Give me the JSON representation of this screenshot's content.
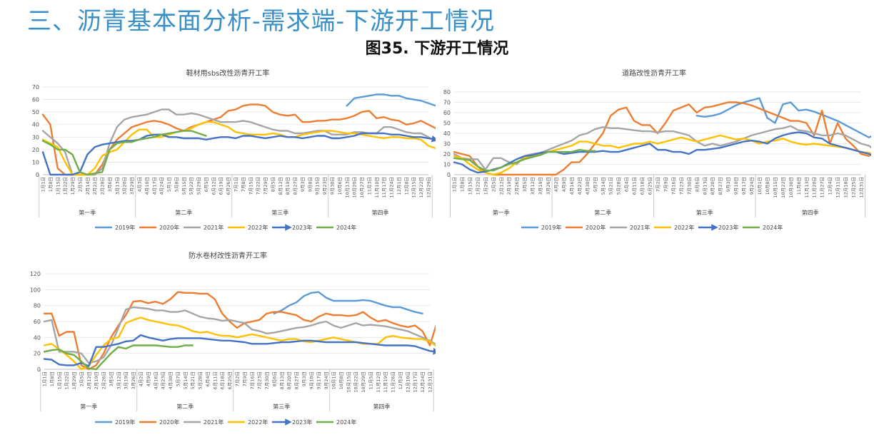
{
  "page": {
    "heading": "三、沥青基本面分析-需求端-下游开工情况",
    "figure_title": "图35. 下游开工情况"
  },
  "chart_data": [
    {
      "type": "line",
      "title": "鞋材用sbs改性沥青开工率",
      "y_ticks": [
        0,
        10,
        20,
        30,
        40,
        50,
        60,
        70
      ],
      "ylim": [
        0,
        70
      ],
      "x_labels": [
        "1月1日",
        "1月8日",
        "1月15日",
        "1月22日",
        "1月29日",
        "2月5日",
        "2月14日",
        "2月21日",
        "2月28日",
        "3月6日",
        "3月13日",
        "3月20日",
        "3月29日",
        "4月3日",
        "4月10日",
        "4月17日",
        "4月24日",
        "5月1日",
        "5月8日",
        "5月15日",
        "5月22日",
        "5月29日",
        "6月5日",
        "6月12日",
        "6月19日",
        "6月26日",
        "7月1日",
        "7月8日",
        "7月15日",
        "7月22日",
        "7月29日",
        "8月5日",
        "8月12日",
        "8月19日",
        "8月27日",
        "9月3日",
        "9月8日",
        "9月15日",
        "9月23日",
        "9月30日",
        "10月6日",
        "10月13日",
        "10月20日",
        "10月27日",
        "11月3日",
        "11月10日",
        "11月17日",
        "11月24日",
        "12月1日",
        "12月8日",
        "12月15日",
        "12月22日",
        "12月29日"
      ],
      "quarters": [
        "第一季",
        "第二季",
        "第三季",
        "第四季"
      ],
      "quarter_bounds": [
        0,
        13,
        26,
        39,
        53
      ],
      "series": [
        {
          "name": "2019年",
          "color": "#5b9bd5",
          "start": 41,
          "values": [
            55,
            61,
            62,
            63,
            64,
            64,
            63,
            63,
            61,
            60,
            59,
            57,
            55,
            52
          ]
        },
        {
          "name": "2020年",
          "color": "#ed7d31",
          "start": 0,
          "values": [
            48,
            40,
            5,
            0,
            0,
            0,
            0,
            0,
            8,
            20,
            28,
            33,
            38,
            40,
            42,
            43,
            42,
            40,
            37,
            35,
            38,
            40,
            42,
            44,
            46,
            51,
            52,
            55,
            56,
            56,
            55,
            50,
            48,
            47,
            48,
            42,
            42,
            43,
            43,
            44,
            44,
            45,
            47,
            50,
            51,
            45,
            46,
            44,
            43,
            40,
            41,
            43,
            40,
            37
          ]
        },
        {
          "name": "2021年",
          "color": "#a5a5a5",
          "start": 0,
          "values": [
            35,
            30,
            25,
            18,
            0,
            0,
            0,
            0,
            5,
            25,
            38,
            44,
            46,
            47,
            48,
            50,
            52,
            52,
            48,
            48,
            49,
            48,
            46,
            44,
            42,
            42,
            42,
            43,
            42,
            40,
            38,
            36,
            35,
            35,
            33,
            33,
            34,
            35,
            35,
            32,
            32,
            32,
            34,
            34,
            33,
            33,
            38,
            38,
            36,
            34,
            33,
            33,
            30,
            27
          ]
        },
        {
          "name": "2022年",
          "color": "#ffc000",
          "start": 0,
          "values": [
            28,
            25,
            22,
            10,
            0,
            0,
            0,
            5,
            15,
            18,
            20,
            26,
            32,
            36,
            36,
            30,
            30,
            32,
            34,
            35,
            37,
            40,
            42,
            42,
            40,
            38,
            34,
            33,
            32,
            32,
            32,
            33,
            32,
            30,
            30,
            32,
            33,
            34,
            35,
            35,
            34,
            33,
            33,
            32,
            31,
            30,
            29,
            30,
            30,
            29,
            29,
            28,
            23,
            21
          ]
        },
        {
          "name": "2023年",
          "color": "#4472c4",
          "start": 0,
          "values": [
            18,
            0,
            0,
            0,
            0,
            2,
            16,
            22,
            24,
            25,
            26,
            27,
            27,
            28,
            31,
            32,
            32,
            30,
            30,
            29,
            29,
            29,
            28,
            29,
            30,
            30,
            29,
            31,
            31,
            30,
            29,
            30,
            31,
            30,
            30,
            29,
            30,
            31,
            31,
            29,
            29,
            30,
            31,
            33,
            33,
            33,
            33,
            32,
            32,
            31,
            30,
            30,
            29,
            28
          ]
        },
        {
          "name": "2024年",
          "color": "#70ad47",
          "start": 0,
          "values": [
            27,
            24,
            20,
            20,
            16,
            2,
            0,
            1,
            2,
            20,
            25,
            26,
            26,
            28,
            29,
            30,
            32,
            33,
            34,
            35,
            35,
            33,
            31
          ]
        }
      ],
      "arrow_series": "2023年",
      "legend": [
        "2019年",
        "2020年",
        "2021年",
        "2022年",
        "2023年",
        "2024年"
      ]
    },
    {
      "type": "line",
      "title": "道路改性沥青开工率",
      "y_ticks": [
        0,
        10,
        20,
        30,
        40,
        50,
        60,
        70,
        80
      ],
      "ylim": [
        0,
        80
      ],
      "x_labels": [
        "1月1日",
        "1月8日",
        "1月15日",
        "1月22日",
        "1月29日",
        "2月5日",
        "2月12日",
        "2月19日",
        "2月26日",
        "3月5日",
        "3月12日",
        "3月19日",
        "3月26日",
        "4月2日",
        "4月9日",
        "4月16日",
        "4月23日",
        "4月30日",
        "5月7日",
        "5月14日",
        "5月21日",
        "5月28日",
        "6月4日",
        "6月11日",
        "6月18日",
        "6月25日",
        "7月2日",
        "7月9日",
        "7月16日",
        "7月23日",
        "7月30日",
        "8月6日",
        "8月13日",
        "8月20日",
        "8月27日",
        "9月3日",
        "9月10日",
        "9月17日",
        "9月24日",
        "10月1日",
        "10月8日",
        "10月15日",
        "10月22日",
        "10月30日",
        "11月6日",
        "11月13日",
        "11月20日",
        "11月27日",
        "12月4日",
        "12月11日",
        "12月18日",
        "12月25日",
        "12月31日"
      ],
      "quarters": [
        "第一季",
        "第二季",
        "第三季",
        "第四季"
      ],
      "quarter_bounds": [
        0,
        13,
        26,
        39,
        53
      ],
      "series": [
        {
          "name": "2019年",
          "color": "#5b9bd5",
          "start": 31,
          "values": [
            57,
            56,
            57,
            59,
            63,
            67,
            70,
            72,
            74,
            55,
            50,
            68,
            70,
            62,
            63,
            61,
            58,
            55,
            52,
            48,
            44,
            40,
            36,
            40,
            31
          ]
        },
        {
          "name": "2020年",
          "color": "#ed7d31",
          "start": 0,
          "values": [
            22,
            20,
            18,
            8,
            2,
            0,
            0,
            0,
            0,
            0,
            0,
            0,
            0,
            0,
            5,
            12,
            12,
            20,
            30,
            40,
            57,
            63,
            65,
            52,
            48,
            48,
            40,
            50,
            62,
            65,
            68,
            60,
            65,
            66,
            68,
            70,
            70,
            69,
            67,
            64,
            61,
            58,
            55,
            52,
            52,
            50,
            38,
            62,
            30,
            50,
            35,
            28,
            20,
            18
          ]
        },
        {
          "name": "2021年",
          "color": "#a5a5a5",
          "start": 0,
          "values": [
            20,
            16,
            15,
            15,
            5,
            16,
            16,
            12,
            10,
            18,
            20,
            21,
            24,
            27,
            30,
            33,
            38,
            40,
            44,
            46,
            45,
            45,
            44,
            43,
            42,
            42,
            41,
            42,
            42,
            40,
            38,
            32,
            28,
            30,
            28,
            30,
            32,
            35,
            38,
            40,
            42,
            44,
            45,
            47,
            43,
            42,
            40,
            38,
            38,
            40,
            38,
            34,
            30,
            28,
            22
          ]
        },
        {
          "name": "2022年",
          "color": "#ffc000",
          "start": 0,
          "values": [
            18,
            16,
            10,
            5,
            2,
            0,
            2,
            6,
            12,
            16,
            18,
            20,
            22,
            24,
            26,
            28,
            32,
            32,
            30,
            28,
            28,
            26,
            28,
            30,
            30,
            32,
            30,
            32,
            34,
            36,
            34,
            32,
            34,
            36,
            38,
            36,
            34,
            35,
            33,
            30,
            32,
            33,
            35,
            32,
            30,
            29,
            30,
            29,
            28,
            27,
            26,
            24,
            22,
            21,
            20
          ]
        },
        {
          "name": "2023年",
          "color": "#4472c4",
          "start": 0,
          "values": [
            12,
            10,
            5,
            2,
            3,
            5,
            7,
            11,
            15,
            18,
            19,
            21,
            22,
            22,
            20,
            21,
            22,
            22,
            22,
            23,
            22,
            22,
            24,
            26,
            28,
            30,
            24,
            24,
            22,
            22,
            20,
            24,
            24,
            25,
            26,
            28,
            30,
            32,
            33,
            32,
            30,
            35,
            38,
            40,
            41,
            40,
            36,
            35,
            30,
            28,
            26,
            24,
            22,
            20,
            16
          ]
        },
        {
          "name": "2024年",
          "color": "#70ad47",
          "start": 0,
          "values": [
            16,
            15,
            14,
            8,
            4,
            4,
            7,
            10,
            12,
            15,
            17,
            19,
            22,
            22,
            22,
            22,
            24,
            23,
            23
          ]
        }
      ],
      "arrow_series": "2023年",
      "legend": [
        "2019年",
        "2020年",
        "2021年",
        "2022年",
        "2023年",
        "2024年"
      ]
    },
    {
      "type": "line",
      "title": "防水卷材改性沥青开工率",
      "y_ticks": [
        0,
        20,
        40,
        60,
        80,
        100,
        120
      ],
      "ylim": [
        0,
        120
      ],
      "x_labels": [
        "1月1日",
        "1月8日",
        "1月15日",
        "1月22日",
        "1月29日",
        "2月5日",
        "2月12日",
        "2月19日",
        "2月26日",
        "3月5日",
        "3月12日",
        "3月19日",
        "3月26日",
        "4月2日",
        "4月9日",
        "4月16日",
        "4月23日",
        "4月30日",
        "5月7日",
        "5月14日",
        "5月21日",
        "5月28日",
        "6月4日",
        "6月11日",
        "6月18日",
        "6月25日",
        "7月2日",
        "7月9日",
        "7月16日",
        "7月23日",
        "7月30日",
        "8月6日",
        "8月13日",
        "8月20日",
        "8月27日",
        "9月3日",
        "9月10日",
        "9月17日",
        "9月24日",
        "10月1日",
        "10月8日",
        "10月15日",
        "10月22日",
        "10月29日",
        "11月5日",
        "11月12日",
        "11月19日",
        "11月26日",
        "12月3日",
        "12月10日",
        "12月17日",
        "12月24日",
        "12月31日"
      ],
      "quarters": [
        "第一季",
        "第二季",
        "第三季",
        "第四季"
      ],
      "quarter_bounds": [
        0,
        13,
        26,
        39,
        53
      ],
      "series": [
        {
          "name": "2019年",
          "color": "#5b9bd5",
          "start": 31,
          "values": [
            70,
            74,
            80,
            84,
            92,
            96,
            97,
            90,
            86,
            86,
            86,
            86,
            87,
            86,
            83,
            80,
            78,
            78,
            75,
            72,
            70
          ]
        },
        {
          "name": "2020年",
          "color": "#ed7d31",
          "start": 0,
          "values": [
            70,
            70,
            42,
            47,
            47,
            5,
            0,
            5,
            20,
            40,
            55,
            68,
            85,
            86,
            83,
            85,
            82,
            88,
            97,
            96,
            96,
            95,
            95,
            88,
            70,
            60,
            52,
            58,
            60,
            62,
            70,
            72,
            72,
            70,
            68,
            62,
            60,
            66,
            70,
            68,
            68,
            67,
            68,
            72,
            65,
            60,
            62,
            58,
            55,
            53,
            55,
            48,
            30,
            60
          ]
        },
        {
          "name": "2021年",
          "color": "#a5a5a5",
          "start": 0,
          "values": [
            60,
            62,
            22,
            22,
            22,
            20,
            8,
            10,
            15,
            30,
            52,
            75,
            78,
            77,
            76,
            74,
            74,
            72,
            72,
            74,
            70,
            66,
            64,
            63,
            61,
            62,
            60,
            58,
            50,
            48,
            45,
            46,
            48,
            50,
            52,
            53,
            55,
            58,
            60,
            55,
            52,
            55,
            58,
            55,
            56,
            55,
            54,
            52,
            50,
            48,
            44,
            40,
            36,
            30
          ]
        },
        {
          "name": "2022年",
          "color": "#ffc000",
          "start": 0,
          "values": [
            30,
            32,
            25,
            18,
            10,
            0,
            4,
            18,
            30,
            38,
            40,
            58,
            62,
            65,
            62,
            60,
            58,
            56,
            55,
            52,
            48,
            46,
            47,
            44,
            42,
            42,
            40,
            42,
            44,
            42,
            40,
            38,
            36,
            38,
            38,
            35,
            34,
            36,
            38,
            40,
            38,
            36,
            34,
            32,
            32,
            32,
            40,
            42,
            40,
            39,
            38,
            38,
            35,
            28
          ]
        },
        {
          "name": "2023年",
          "color": "#4472c4",
          "start": 0,
          "values": [
            13,
            12,
            6,
            5,
            5,
            8,
            4,
            28,
            28,
            30,
            32,
            35,
            36,
            43,
            40,
            38,
            36,
            38,
            39,
            39,
            39,
            39,
            38,
            37,
            36,
            36,
            35,
            34,
            32,
            32,
            32,
            33,
            34,
            34,
            35,
            36,
            36,
            35,
            34,
            34,
            34,
            34,
            34,
            33,
            32,
            31,
            30,
            30,
            30,
            30,
            29,
            26,
            23,
            22
          ]
        },
        {
          "name": "2024年",
          "color": "#70ad47",
          "start": 0,
          "values": [
            22,
            24,
            25,
            20,
            18,
            10,
            1,
            0,
            10,
            20,
            28,
            26,
            30,
            30,
            30,
            30,
            29,
            28,
            28,
            30,
            30
          ]
        }
      ],
      "arrow_series": "2023年",
      "legend": [
        "2019年",
        "2020年",
        "2021年",
        "2022年",
        "2023年",
        "2024年"
      ]
    }
  ]
}
